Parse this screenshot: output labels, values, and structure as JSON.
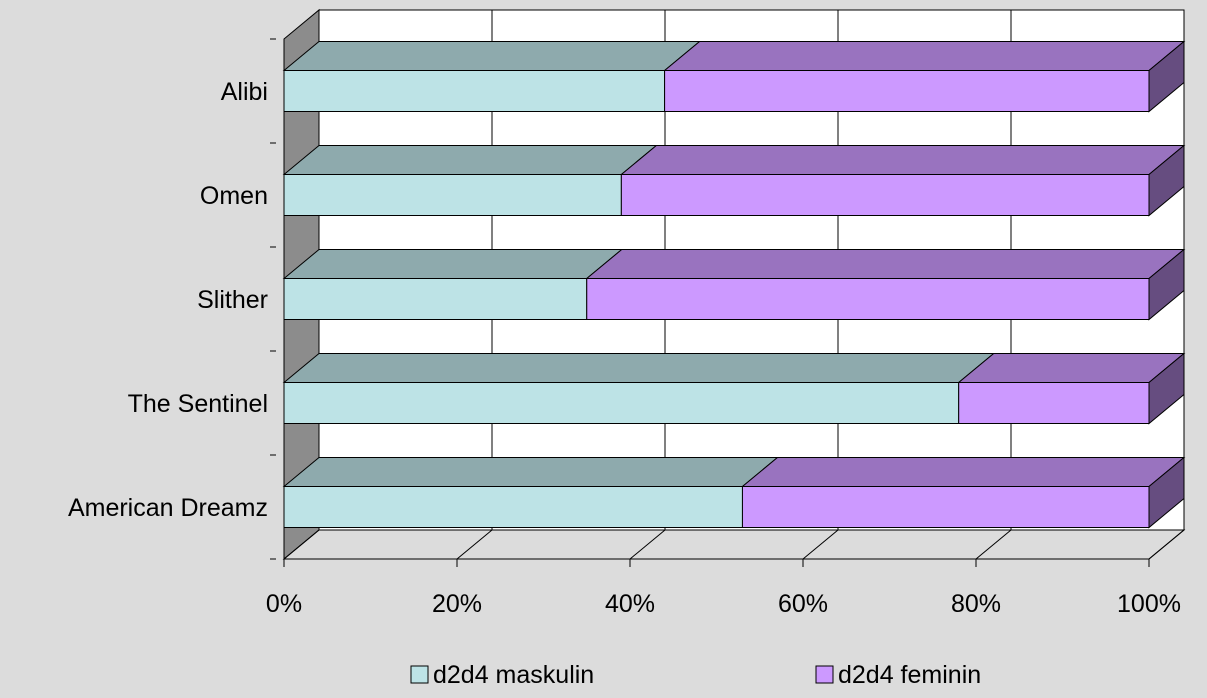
{
  "chart_data": {
    "type": "bar",
    "orientation": "horizontal",
    "stacked": "percent",
    "three_d": true,
    "categories": [
      "Alibi",
      "Omen",
      "Slither",
      "The Sentinel",
      "American Dreamz"
    ],
    "series": [
      {
        "name": "d2d4 maskulin",
        "values": [
          44,
          39,
          35,
          78,
          53
        ],
        "color": "#bde3e6"
      },
      {
        "name": "d2d4 feminin",
        "values": [
          56,
          61,
          65,
          22,
          47
        ],
        "color": "#cc99ff"
      }
    ],
    "x_ticks": [
      "0%",
      "20%",
      "40%",
      "60%",
      "80%",
      "100%"
    ],
    "xlim": [
      0,
      100
    ],
    "grid": true,
    "legend_position": "bottom"
  }
}
